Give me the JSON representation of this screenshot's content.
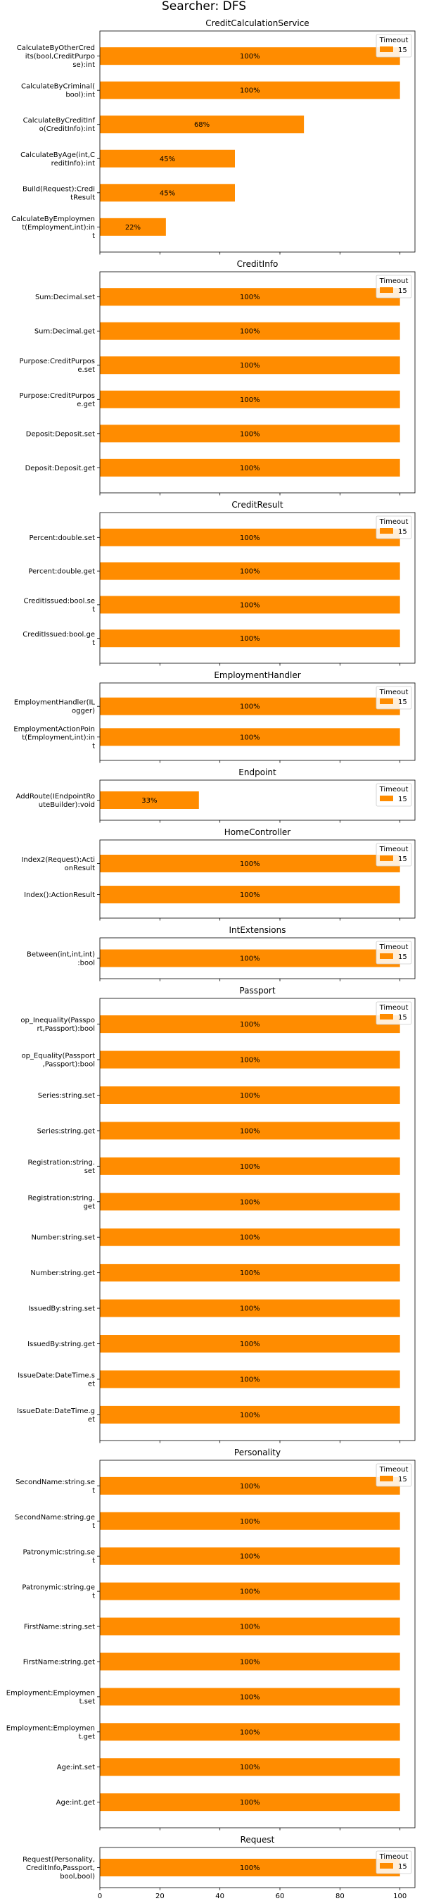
{
  "suptitle": "Searcher: DFS",
  "colors": {
    "bar": "#ff8c00",
    "axes": "#000000",
    "legend_border": "#cccccc"
  },
  "legend": {
    "title": "Timeout",
    "entry": "15",
    "placement": "upper right"
  },
  "x_axis": {
    "range": [
      0,
      105
    ],
    "ticks": [
      0,
      20,
      40,
      60,
      80,
      100
    ]
  },
  "chart_data": [
    {
      "type": "bar",
      "orientation": "horizontal",
      "title": "CreditCalculationService",
      "categories": [
        "CalculateByOtherCred\nits(bool,CreditPurpo\nse):int",
        "CalculateByCriminal(\nbool):int",
        "CalculateByCreditInf\no(CreditInfo):int",
        "CalculateByAge(int,C\nreditInfo):int",
        "Build(Request):Credi\ntResult",
        "CalculateByEmploymen\nt(Employment,int):in\nt"
      ],
      "values": [
        100,
        100,
        68,
        45,
        45,
        22
      ],
      "labels": [
        "100%",
        "100%",
        "68%",
        "45%",
        "45%",
        "22%"
      ],
      "xlim": [
        0,
        105
      ]
    },
    {
      "type": "bar",
      "orientation": "horizontal",
      "title": "CreditInfo",
      "categories": [
        "Sum:Decimal.set",
        "Sum:Decimal.get",
        "Purpose:CreditPurpos\ne.set",
        "Purpose:CreditPurpos\ne.get",
        "Deposit:Deposit.set",
        "Deposit:Deposit.get"
      ],
      "values": [
        100,
        100,
        100,
        100,
        100,
        100
      ],
      "labels": [
        "100%",
        "100%",
        "100%",
        "100%",
        "100%",
        "100%"
      ],
      "xlim": [
        0,
        105
      ]
    },
    {
      "type": "bar",
      "orientation": "horizontal",
      "title": "CreditResult",
      "categories": [
        "Percent:double.set",
        "Percent:double.get",
        "CreditIssued:bool.se\nt",
        "CreditIssued:bool.ge\nt"
      ],
      "values": [
        100,
        100,
        100,
        100
      ],
      "labels": [
        "100%",
        "100%",
        "100%",
        "100%"
      ],
      "xlim": [
        0,
        105
      ]
    },
    {
      "type": "bar",
      "orientation": "horizontal",
      "title": "EmploymentHandler",
      "categories": [
        "EmploymentHandler(IL\nogger)",
        "EmploymentActionPoin\nt(Employment,int):in\nt"
      ],
      "values": [
        100,
        100
      ],
      "labels": [
        "100%",
        "100%"
      ],
      "xlim": [
        0,
        105
      ]
    },
    {
      "type": "bar",
      "orientation": "horizontal",
      "title": "Endpoint",
      "categories": [
        "AddRoute(IEndpointRo\nuteBuilder):void"
      ],
      "values": [
        33
      ],
      "labels": [
        "33%"
      ],
      "xlim": [
        0,
        105
      ]
    },
    {
      "type": "bar",
      "orientation": "horizontal",
      "title": "HomeController",
      "categories": [
        "Index2(Request):Acti\nonResult",
        "Index():ActionResult"
      ],
      "values": [
        100,
        100
      ],
      "labels": [
        "100%",
        "100%"
      ],
      "xlim": [
        0,
        105
      ]
    },
    {
      "type": "bar",
      "orientation": "horizontal",
      "title": "IntExtensions",
      "categories": [
        "Between(int,int,int)\n:bool"
      ],
      "values": [
        100
      ],
      "labels": [
        "100%"
      ],
      "xlim": [
        0,
        105
      ]
    },
    {
      "type": "bar",
      "orientation": "horizontal",
      "title": "Passport",
      "categories": [
        "op_Inequality(Passpo\nrt,Passport):bool",
        "op_Equality(Passport\n,Passport):bool",
        "Series:string.set",
        "Series:string.get",
        "Registration:string.\nset",
        "Registration:string.\nget",
        "Number:string.set",
        "Number:string.get",
        "IssuedBy:string.set",
        "IssuedBy:string.get",
        "IssueDate:DateTime.s\net",
        "IssueDate:DateTime.g\net"
      ],
      "values": [
        100,
        100,
        100,
        100,
        100,
        100,
        100,
        100,
        100,
        100,
        100,
        100
      ],
      "labels": [
        "100%",
        "100%",
        "100%",
        "100%",
        "100%",
        "100%",
        "100%",
        "100%",
        "100%",
        "100%",
        "100%",
        "100%"
      ],
      "xlim": [
        0,
        105
      ]
    },
    {
      "type": "bar",
      "orientation": "horizontal",
      "title": "Personality",
      "categories": [
        "SecondName:string.se\nt",
        "SecondName:string.ge\nt",
        "Patronymic:string.se\nt",
        "Patronymic:string.ge\nt",
        "FirstName:string.set",
        "FirstName:string.get",
        "Employment:Employmen\nt.set",
        "Employment:Employmen\nt.get",
        "Age:int.set",
        "Age:int.get"
      ],
      "values": [
        100,
        100,
        100,
        100,
        100,
        100,
        100,
        100,
        100,
        100
      ],
      "labels": [
        "100%",
        "100%",
        "100%",
        "100%",
        "100%",
        "100%",
        "100%",
        "100%",
        "100%",
        "100%"
      ],
      "xlim": [
        0,
        105
      ]
    },
    {
      "type": "bar",
      "orientation": "horizontal",
      "title": "Request",
      "categories": [
        "Request(Personality,\nCreditInfo,Passport,\nbool,bool)"
      ],
      "values": [
        100
      ],
      "labels": [
        "100%"
      ],
      "xlim": [
        0,
        105
      ]
    }
  ]
}
